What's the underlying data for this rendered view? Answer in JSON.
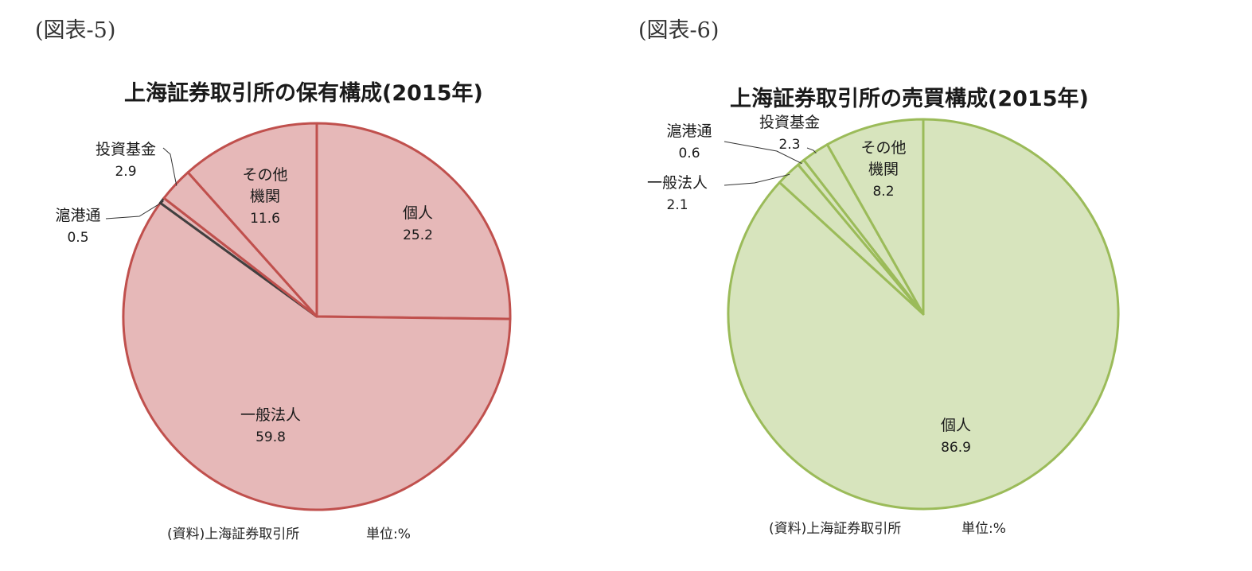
{
  "chart_data": [
    {
      "type": "pie",
      "figure_label": "(図表-5)",
      "title": "上海証券取引所の保有構成(2015年)",
      "slices": [
        {
          "label": "個人",
          "value": 25.2
        },
        {
          "label": "一般法人",
          "value": 59.8
        },
        {
          "label": "滬港通",
          "value": 0.5
        },
        {
          "label": "投資基金",
          "value": 2.9
        },
        {
          "label": "その他機関",
          "label_lines": [
            "その他",
            "機関"
          ],
          "value": 11.6
        }
      ],
      "colors": {
        "fill": "#e6b8b8",
        "stroke": "#c0504d",
        "accent": "#404040"
      },
      "source": "(資料)上海証券取引所",
      "unit": "単位:%"
    },
    {
      "type": "pie",
      "figure_label": "(図表-6)",
      "title": "上海証券取引所の売買構成(2015年)",
      "slices": [
        {
          "label": "個人",
          "value": 86.9
        },
        {
          "label": "一般法人",
          "value": 2.1
        },
        {
          "label": "滬港通",
          "value": 0.6
        },
        {
          "label": "投資基金",
          "value": 2.3
        },
        {
          "label": "その他機関",
          "label_lines": [
            "その他",
            "機関"
          ],
          "value": 8.2
        }
      ],
      "colors": {
        "fill": "#d7e4bd",
        "stroke": "#9bbb59"
      },
      "source": "(資料)上海証券取引所",
      "unit": "単位:%"
    }
  ]
}
